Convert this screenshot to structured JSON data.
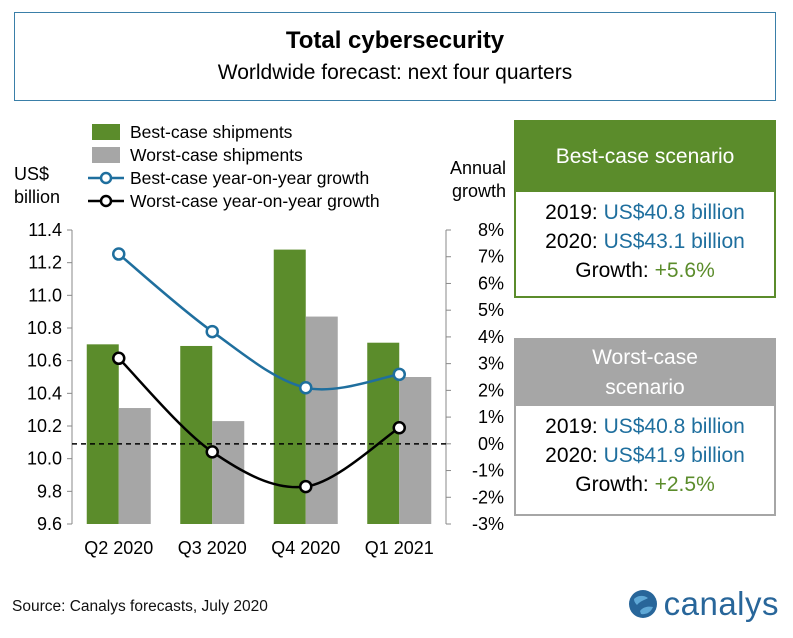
{
  "header": {
    "title": "Total cybersecurity",
    "subtitle": "Worldwide forecast: next four quarters"
  },
  "chart_data": {
    "type": "bar",
    "categories": [
      "Q2 2020",
      "Q3 2020",
      "Q4 2020",
      "Q1 2021"
    ],
    "series": [
      {
        "name": "Best-case shipments",
        "kind": "bar",
        "axis": "left",
        "color": "#5b8c2b",
        "values": [
          10.7,
          10.69,
          11.28,
          10.71
        ]
      },
      {
        "name": "Worst-case shipments",
        "kind": "bar",
        "axis": "left",
        "color": "#a6a6a6",
        "values": [
          10.31,
          10.23,
          10.87,
          10.5
        ]
      },
      {
        "name": "Best-case year-on-year growth",
        "kind": "line",
        "axis": "right",
        "color": "#1f6f9e",
        "values": [
          7.1,
          4.2,
          2.1,
          2.6
        ]
      },
      {
        "name": "Worst-case year-on-year growth",
        "kind": "line",
        "axis": "right",
        "color": "#000000",
        "values": [
          3.2,
          -0.3,
          -1.6,
          0.6
        ]
      }
    ],
    "ylabel": "US$ billion",
    "y2label": "Annual growth",
    "ylim": [
      9.6,
      11.4
    ],
    "y2lim": [
      -3,
      8
    ],
    "yticks": [
      "11.4",
      "11.2",
      "11.0",
      "10.8",
      "10.6",
      "10.4",
      "10.2",
      "10.0",
      "9.8",
      "9.6"
    ],
    "y2ticks": [
      "8%",
      "7%",
      "6%",
      "5%",
      "4%",
      "3%",
      "2%",
      "1%",
      "0%",
      "-1%",
      "-2%",
      "-3%"
    ],
    "reference_line_y2": 0,
    "legend": "top-left"
  },
  "best_case": {
    "header": "Best-case scenario",
    "color": "#5b8c2b",
    "line1_label": "2019: ",
    "line1_value": "US$40.8 billion",
    "line2_label": "2020: ",
    "line2_value": "US$43.1 billion",
    "line3_label": "Growth: ",
    "line3_value": "+5.6%"
  },
  "worst_case": {
    "header": "Worst-case scenario",
    "color": "#a6a6a6",
    "line1_label": "2019: ",
    "line1_value": "US$40.8 billion",
    "line2_label": "2020: ",
    "line2_value": "US$41.9 billion",
    "line3_label": "Growth: ",
    "line3_value": "+2.5%"
  },
  "footer": {
    "source": "Source: Canalys forecasts, July 2020",
    "logo_text": "canalys",
    "logo_icon": "globe-icon"
  }
}
